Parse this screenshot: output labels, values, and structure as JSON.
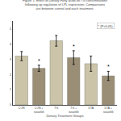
{
  "chart_data": {
    "type": "bar",
    "title": "Figure 1: Effect of Dietary Fatty acids on TG concentrations\nfollowing up-regulation of LPL expression. Comparisons\nare between control and each treatment.",
    "x_label": "Dietary Treatment Groups",
    "categories": [
      "CON",
      "CON +\nrasaittlili",
      "TG",
      "TG +\nrasaittlili",
      "DTA",
      "DTA +\nrasaittlili"
    ],
    "values": [
      3.2,
      2.4,
      4.2,
      3.1,
      2.7,
      1.9
    ],
    "errors": [
      0.3,
      0.2,
      0.35,
      0.45,
      0.5,
      0.3
    ],
    "colors": [
      "#ccc4a8",
      "#9a8f76",
      "#ccc4a8",
      "#9a8f76",
      "#ccc4a8",
      "#9a8f76"
    ],
    "ylim": [
      0,
      5.5
    ],
    "yticks": [
      0,
      1,
      2,
      3,
      4,
      5
    ],
    "grid": false,
    "annotations": [
      {
        "text": "*",
        "category": "CON +\nrasaittlili"
      },
      {
        "text": "*",
        "category": "TG +\nrasaittlili"
      },
      {
        "text": "*",
        "category": "DTA +\nrasaittlili"
      },
      {
        "text": "* (P<0.05)"
      }
    ]
  }
}
